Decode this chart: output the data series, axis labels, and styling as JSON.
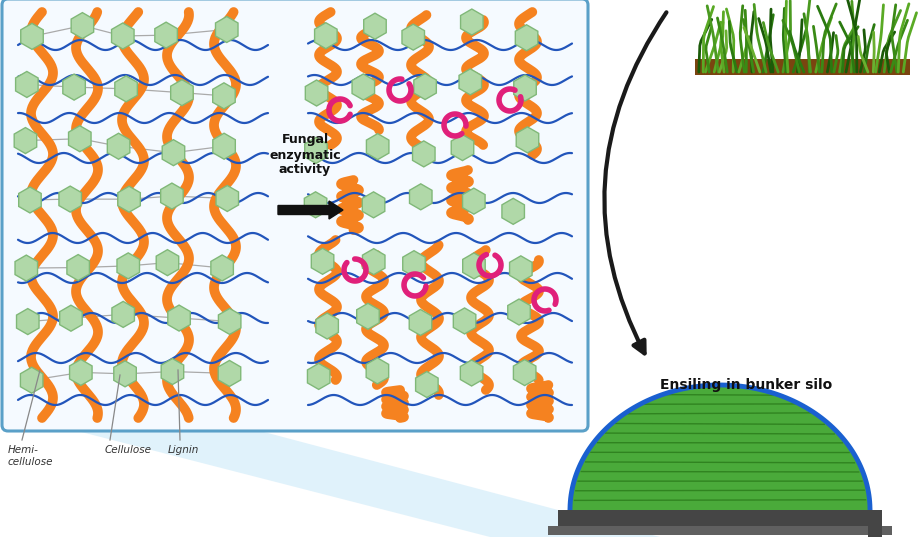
{
  "bg_color": "#ffffff",
  "box_border": "#5aa0c8",
  "orange_color": "#f58220",
  "blue_color": "#2255bb",
  "green_hex_color": "#b0d8a8",
  "green_hex_border": "#80b878",
  "pink_color": "#e0207a",
  "label_hemi": "Hemi-\ncellulose",
  "label_cellulose": "Cellulose",
  "label_lignin": "Lignin",
  "label_fungal_line1": "Fungal",
  "label_fungal_line2": "enzymatic",
  "label_fungal_line3": "activity",
  "label_ensiling": "Ensiling in bunker silo",
  "silo_green": "#4aaa3a",
  "silo_green_dark": "#2a7a1a",
  "silo_blue_border": "#1a60d0",
  "silo_dark": "#454545",
  "silo_floor": "#606060",
  "grass_soil": "#7a4510",
  "light_blue_fill": "#c8e8f8"
}
